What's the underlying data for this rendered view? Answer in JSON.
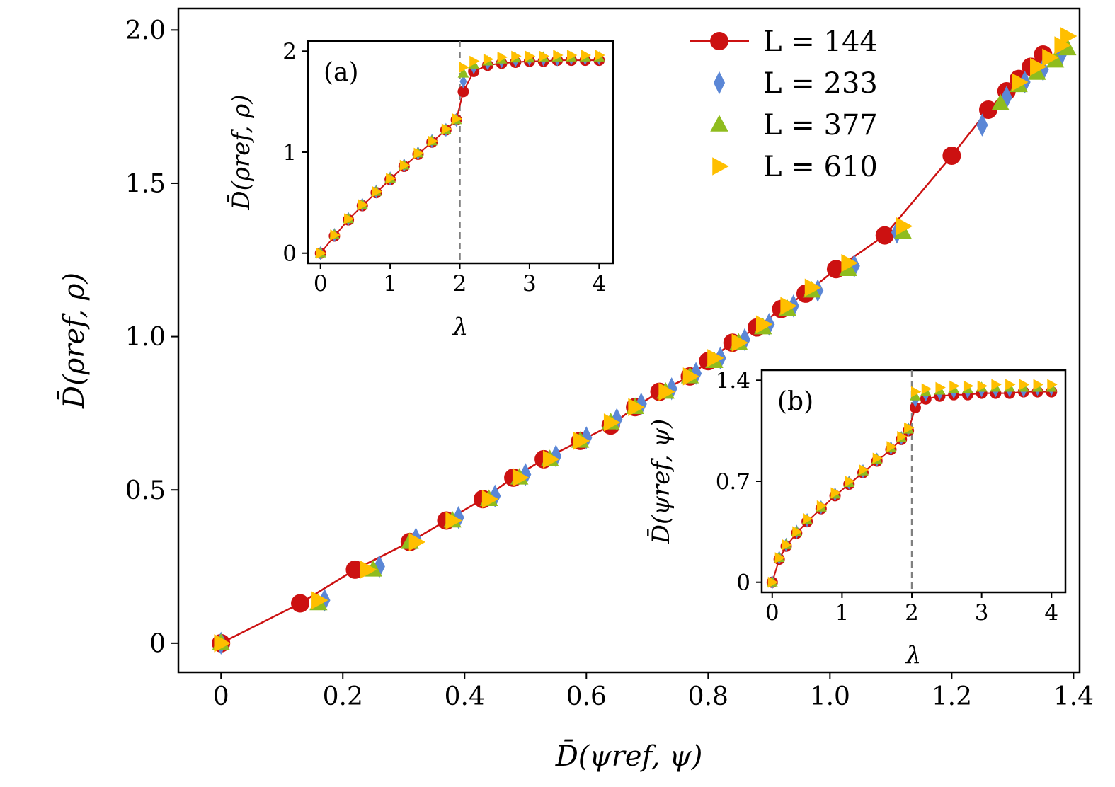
{
  "colors": {
    "L144": "#cc1111",
    "L233": "#5b87d6",
    "L377": "#8fbc1e",
    "L610": "#ffbf00",
    "vline": "#808080"
  },
  "legend": [
    {
      "L": "144",
      "label": "L = 144",
      "marker": "circle",
      "color_key": "L144",
      "line": true
    },
    {
      "L": "233",
      "label": "L = 233",
      "marker": "diamond",
      "color_key": "L233",
      "line": false
    },
    {
      "L": "377",
      "label": "L = 377",
      "marker": "triangle-up",
      "color_key": "L377",
      "line": false
    },
    {
      "L": "610",
      "label": "L = 610",
      "marker": "triangle-right",
      "color_key": "L610",
      "line": false
    }
  ],
  "chart_data": [
    {
      "type": "scatter",
      "xlabel": "D̄(ψref, ψ)",
      "ylabel": "D̄(ρref, ρ)",
      "xlim": [
        -0.07,
        1.41
      ],
      "ylim": [
        -0.095,
        2.07
      ],
      "xticks": [
        0,
        0.2,
        0.4,
        0.6,
        0.8,
        1.0,
        1.2,
        1.4
      ],
      "xtick_labels": [
        "0",
        "0.2",
        "0.4",
        "0.6",
        "0.8",
        "1.0",
        "1.2",
        "1.4"
      ],
      "yticks": [
        0,
        0.5,
        1.0,
        1.5,
        2.0
      ],
      "ytick_labels": [
        "0",
        "0.5",
        "1.0",
        "1.5",
        "2.0"
      ],
      "legend_position": "top-right",
      "series": [
        {
          "name": "L = 144",
          "marker": "circle",
          "line": true,
          "x": [
            0,
            0.13,
            0.22,
            0.31,
            0.37,
            0.43,
            0.48,
            0.53,
            0.59,
            0.64,
            0.68,
            0.72,
            0.77,
            0.8,
            0.84,
            0.88,
            0.92,
            0.96,
            1.01,
            1.09,
            1.2,
            1.26,
            1.29,
            1.31,
            1.33,
            1.35
          ],
          "y": [
            0,
            0.13,
            0.24,
            0.33,
            0.4,
            0.47,
            0.54,
            0.6,
            0.66,
            0.71,
            0.77,
            0.82,
            0.87,
            0.92,
            0.98,
            1.03,
            1.09,
            1.14,
            1.22,
            1.33,
            1.59,
            1.74,
            1.8,
            1.84,
            1.88,
            1.92
          ]
        },
        {
          "name": "L = 233",
          "marker": "diamond",
          "line": false,
          "x": [
            0,
            0.17,
            0.26,
            0.32,
            0.39,
            0.45,
            0.5,
            0.55,
            0.6,
            0.65,
            0.69,
            0.74,
            0.78,
            0.82,
            0.86,
            0.9,
            0.94,
            0.98,
            1.04,
            1.11,
            1.25,
            1.29,
            1.32,
            1.35,
            1.38
          ],
          "y": [
            0,
            0.14,
            0.25,
            0.34,
            0.41,
            0.48,
            0.55,
            0.61,
            0.67,
            0.73,
            0.78,
            0.83,
            0.88,
            0.93,
            0.99,
            1.04,
            1.1,
            1.15,
            1.23,
            1.34,
            1.69,
            1.78,
            1.83,
            1.87,
            1.92
          ]
        },
        {
          "name": "L = 377",
          "marker": "triangle-up",
          "line": false,
          "x": [
            0,
            0.16,
            0.25,
            0.31,
            0.38,
            0.44,
            0.49,
            0.54,
            0.59,
            0.64,
            0.68,
            0.73,
            0.77,
            0.81,
            0.85,
            0.89,
            0.93,
            0.97,
            1.03,
            1.12,
            1.28,
            1.31,
            1.34,
            1.37,
            1.39
          ],
          "y": [
            0,
            0.13,
            0.24,
            0.33,
            0.4,
            0.47,
            0.54,
            0.6,
            0.66,
            0.72,
            0.77,
            0.82,
            0.87,
            0.92,
            0.98,
            1.03,
            1.09,
            1.15,
            1.22,
            1.34,
            1.76,
            1.82,
            1.86,
            1.9,
            1.94
          ]
        },
        {
          "name": "L = 610",
          "marker": "triangle-right",
          "line": false,
          "x": [
            0,
            0.16,
            0.24,
            0.32,
            0.38,
            0.44,
            0.49,
            0.54,
            0.59,
            0.64,
            0.68,
            0.73,
            0.77,
            0.81,
            0.85,
            0.89,
            0.93,
            0.97,
            1.03,
            1.12,
            1.31,
            1.34,
            1.36,
            1.38,
            1.39
          ],
          "y": [
            0,
            0.14,
            0.24,
            0.33,
            0.4,
            0.47,
            0.54,
            0.6,
            0.66,
            0.72,
            0.77,
            0.82,
            0.87,
            0.93,
            0.98,
            1.04,
            1.1,
            1.16,
            1.24,
            1.36,
            1.83,
            1.88,
            1.91,
            1.95,
            1.98
          ]
        }
      ]
    },
    {
      "type": "scatter",
      "panel_label": "(a)",
      "xlabel": "λ",
      "ylabel": "D̄(ρref, ρ)",
      "xlim": [
        -0.18,
        4.2
      ],
      "ylim": [
        -0.1,
        2.1
      ],
      "xticks": [
        0,
        1,
        2,
        3,
        4
      ],
      "xtick_labels": [
        "0",
        "1",
        "2",
        "3",
        "4"
      ],
      "yticks": [
        0,
        1,
        2
      ],
      "ytick_labels": [
        "0",
        "1",
        "2"
      ],
      "vline_x": 2,
      "series": [
        {
          "name": "L = 144",
          "marker": "circle",
          "line": true,
          "x": [
            0,
            0.2,
            0.4,
            0.6,
            0.8,
            1.0,
            1.2,
            1.4,
            1.6,
            1.8,
            1.95,
            2.05,
            2.2,
            2.4,
            2.6,
            2.8,
            3.0,
            3.2,
            3.4,
            3.6,
            3.8,
            4.0
          ],
          "y": [
            0,
            0.17,
            0.33,
            0.47,
            0.6,
            0.73,
            0.86,
            0.98,
            1.1,
            1.22,
            1.32,
            1.6,
            1.8,
            1.86,
            1.88,
            1.89,
            1.9,
            1.9,
            1.91,
            1.91,
            1.91,
            1.91
          ]
        },
        {
          "name": "L = 233",
          "marker": "diamond",
          "line": false,
          "x": [
            0,
            0.2,
            0.4,
            0.6,
            0.8,
            1.0,
            1.2,
            1.4,
            1.6,
            1.8,
            1.95,
            2.05,
            2.2,
            2.4,
            2.6,
            2.8,
            3.0,
            3.2,
            3.4,
            3.6,
            3.8,
            4.0
          ],
          "y": [
            0,
            0.18,
            0.34,
            0.48,
            0.61,
            0.74,
            0.87,
            0.99,
            1.11,
            1.22,
            1.32,
            1.7,
            1.84,
            1.88,
            1.9,
            1.91,
            1.92,
            1.92,
            1.92,
            1.93,
            1.93,
            1.93
          ]
        },
        {
          "name": "L = 377",
          "marker": "triangle-up",
          "line": false,
          "x": [
            0,
            0.2,
            0.4,
            0.6,
            0.8,
            1.0,
            1.2,
            1.4,
            1.6,
            1.8,
            1.95,
            2.05,
            2.2,
            2.4,
            2.6,
            2.8,
            3.0,
            3.2,
            3.4,
            3.6,
            3.8,
            4.0
          ],
          "y": [
            0,
            0.18,
            0.34,
            0.48,
            0.61,
            0.74,
            0.87,
            0.99,
            1.11,
            1.22,
            1.32,
            1.78,
            1.87,
            1.9,
            1.92,
            1.93,
            1.93,
            1.94,
            1.94,
            1.94,
            1.94,
            1.94
          ]
        },
        {
          "name": "L = 610",
          "marker": "triangle-right",
          "line": false,
          "x": [
            0,
            0.2,
            0.4,
            0.6,
            0.8,
            1.0,
            1.2,
            1.4,
            1.6,
            1.8,
            1.95,
            2.05,
            2.2,
            2.4,
            2.6,
            2.8,
            3.0,
            3.2,
            3.4,
            3.6,
            3.8,
            4.0
          ],
          "y": [
            0,
            0.18,
            0.34,
            0.48,
            0.61,
            0.74,
            0.87,
            0.99,
            1.11,
            1.23,
            1.33,
            1.84,
            1.9,
            1.92,
            1.94,
            1.95,
            1.95,
            1.95,
            1.96,
            1.96,
            1.96,
            1.96
          ]
        }
      ]
    },
    {
      "type": "scatter",
      "panel_label": "(b)",
      "xlabel": "λ",
      "ylabel": "D̄(ψref, ψ)",
      "xlim": [
        -0.15,
        4.2
      ],
      "ylim": [
        -0.07,
        1.47
      ],
      "xticks": [
        0,
        1,
        2,
        3,
        4
      ],
      "xtick_labels": [
        "0",
        "1",
        "2",
        "3",
        "4"
      ],
      "yticks": [
        0,
        0.7,
        1.4
      ],
      "ytick_labels": [
        "0",
        "0.7",
        "1.4"
      ],
      "vline_x": 2,
      "series": [
        {
          "name": "L = 144",
          "marker": "circle",
          "line": true,
          "x": [
            0,
            0.1,
            0.2,
            0.35,
            0.5,
            0.7,
            0.9,
            1.1,
            1.3,
            1.5,
            1.7,
            1.85,
            1.95,
            2.05,
            2.2,
            2.4,
            2.6,
            2.8,
            3.0,
            3.2,
            3.4,
            3.6,
            3.8,
            4.0
          ],
          "y": [
            0,
            0.16,
            0.25,
            0.34,
            0.42,
            0.51,
            0.6,
            0.68,
            0.76,
            0.84,
            0.92,
            0.99,
            1.05,
            1.21,
            1.27,
            1.29,
            1.3,
            1.3,
            1.31,
            1.31,
            1.31,
            1.32,
            1.32,
            1.32
          ]
        },
        {
          "name": "L = 233",
          "marker": "diamond",
          "line": false,
          "x": [
            0,
            0.1,
            0.2,
            0.35,
            0.5,
            0.7,
            0.9,
            1.1,
            1.3,
            1.5,
            1.7,
            1.85,
            1.95,
            2.05,
            2.2,
            2.4,
            2.6,
            2.8,
            3.0,
            3.2,
            3.4,
            3.6,
            3.8,
            4.0
          ],
          "y": [
            0,
            0.17,
            0.26,
            0.35,
            0.43,
            0.52,
            0.61,
            0.69,
            0.77,
            0.85,
            0.93,
            1.0,
            1.06,
            1.26,
            1.3,
            1.31,
            1.32,
            1.32,
            1.33,
            1.33,
            1.33,
            1.33,
            1.34,
            1.34
          ]
        },
        {
          "name": "L = 377",
          "marker": "triangle-up",
          "line": false,
          "x": [
            0,
            0.1,
            0.2,
            0.35,
            0.5,
            0.7,
            0.9,
            1.1,
            1.3,
            1.5,
            1.7,
            1.85,
            1.95,
            2.05,
            2.2,
            2.4,
            2.6,
            2.8,
            3.0,
            3.2,
            3.4,
            3.6,
            3.8,
            4.0
          ],
          "y": [
            0,
            0.17,
            0.26,
            0.35,
            0.43,
            0.52,
            0.61,
            0.69,
            0.77,
            0.85,
            0.93,
            1.0,
            1.06,
            1.29,
            1.32,
            1.33,
            1.34,
            1.34,
            1.35,
            1.35,
            1.35,
            1.35,
            1.35,
            1.35
          ]
        },
        {
          "name": "L = 610",
          "marker": "triangle-right",
          "line": false,
          "x": [
            0,
            0.1,
            0.2,
            0.35,
            0.5,
            0.7,
            0.9,
            1.1,
            1.3,
            1.5,
            1.7,
            1.85,
            1.95,
            2.05,
            2.2,
            2.4,
            2.6,
            2.8,
            3.0,
            3.2,
            3.4,
            3.6,
            3.8,
            4.0
          ],
          "y": [
            0,
            0.17,
            0.26,
            0.35,
            0.44,
            0.53,
            0.62,
            0.7,
            0.78,
            0.86,
            0.94,
            1.01,
            1.07,
            1.32,
            1.34,
            1.35,
            1.36,
            1.36,
            1.36,
            1.37,
            1.37,
            1.37,
            1.37,
            1.37
          ]
        }
      ]
    }
  ]
}
